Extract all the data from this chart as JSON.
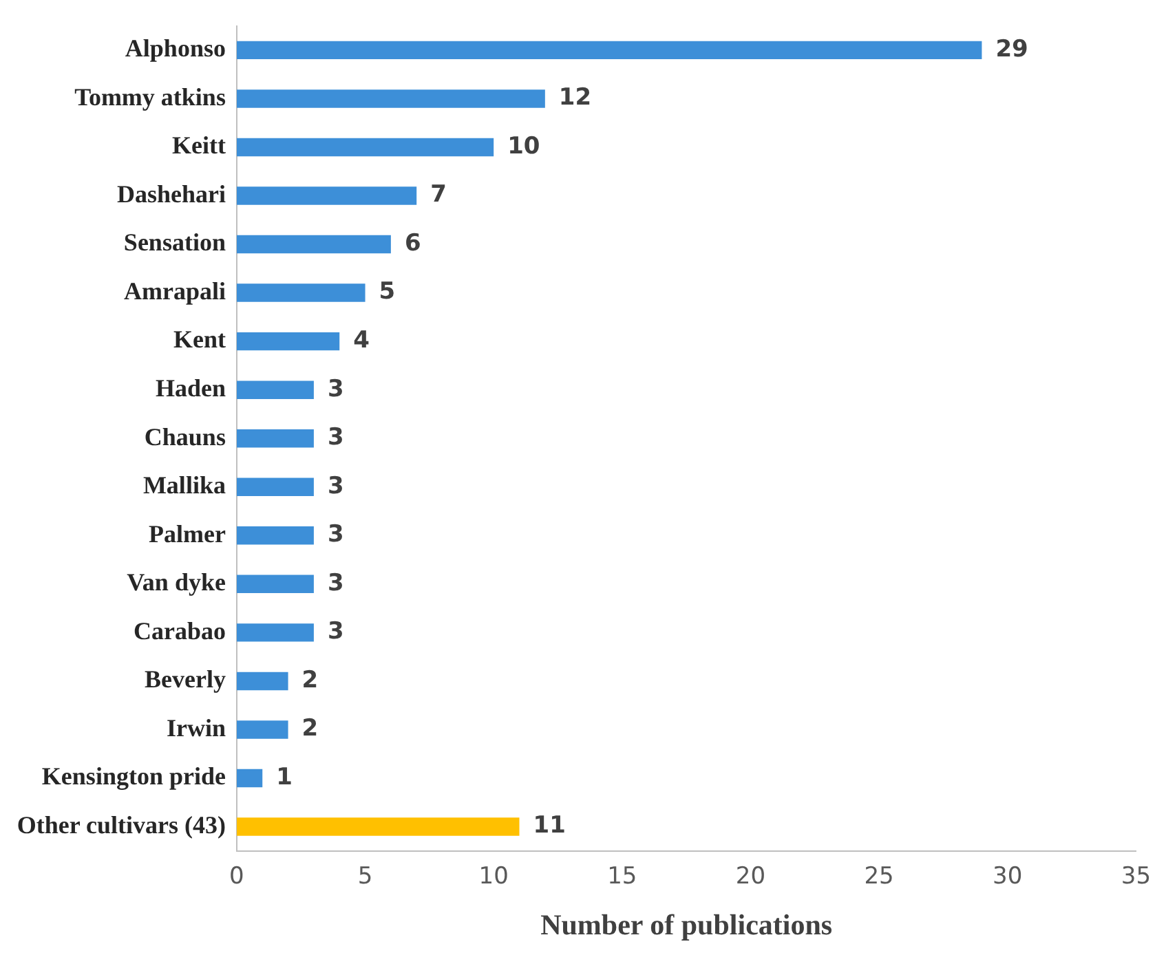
{
  "chart_data": {
    "type": "bar",
    "orientation": "horizontal",
    "xlabel": "Number of publications",
    "categories": [
      "Alphonso",
      "Tommy atkins",
      "Keitt",
      "Dashehari",
      "Sensation",
      "Amrapali",
      "Kent",
      "Haden",
      "Chauns",
      "Mallika",
      "Palmer",
      "Van dyke",
      "Carabao",
      "Beverly",
      "Irwin",
      "Kensington pride",
      "Other cultivars (43)"
    ],
    "values": [
      29,
      12,
      10,
      7,
      6,
      5,
      4,
      3,
      3,
      3,
      3,
      3,
      3,
      2,
      2,
      1,
      11
    ],
    "colors": [
      "#3d8fd8",
      "#3d8fd8",
      "#3d8fd8",
      "#3d8fd8",
      "#3d8fd8",
      "#3d8fd8",
      "#3d8fd8",
      "#3d8fd8",
      "#3d8fd8",
      "#3d8fd8",
      "#3d8fd8",
      "#3d8fd8",
      "#3d8fd8",
      "#3d8fd8",
      "#3d8fd8",
      "#3d8fd8",
      "#ffc000"
    ],
    "xlim": [
      0,
      35
    ],
    "xticks": [
      0,
      5,
      10,
      15,
      20,
      25,
      30,
      35
    ],
    "grid": false,
    "legend": false,
    "data_labels": true
  }
}
